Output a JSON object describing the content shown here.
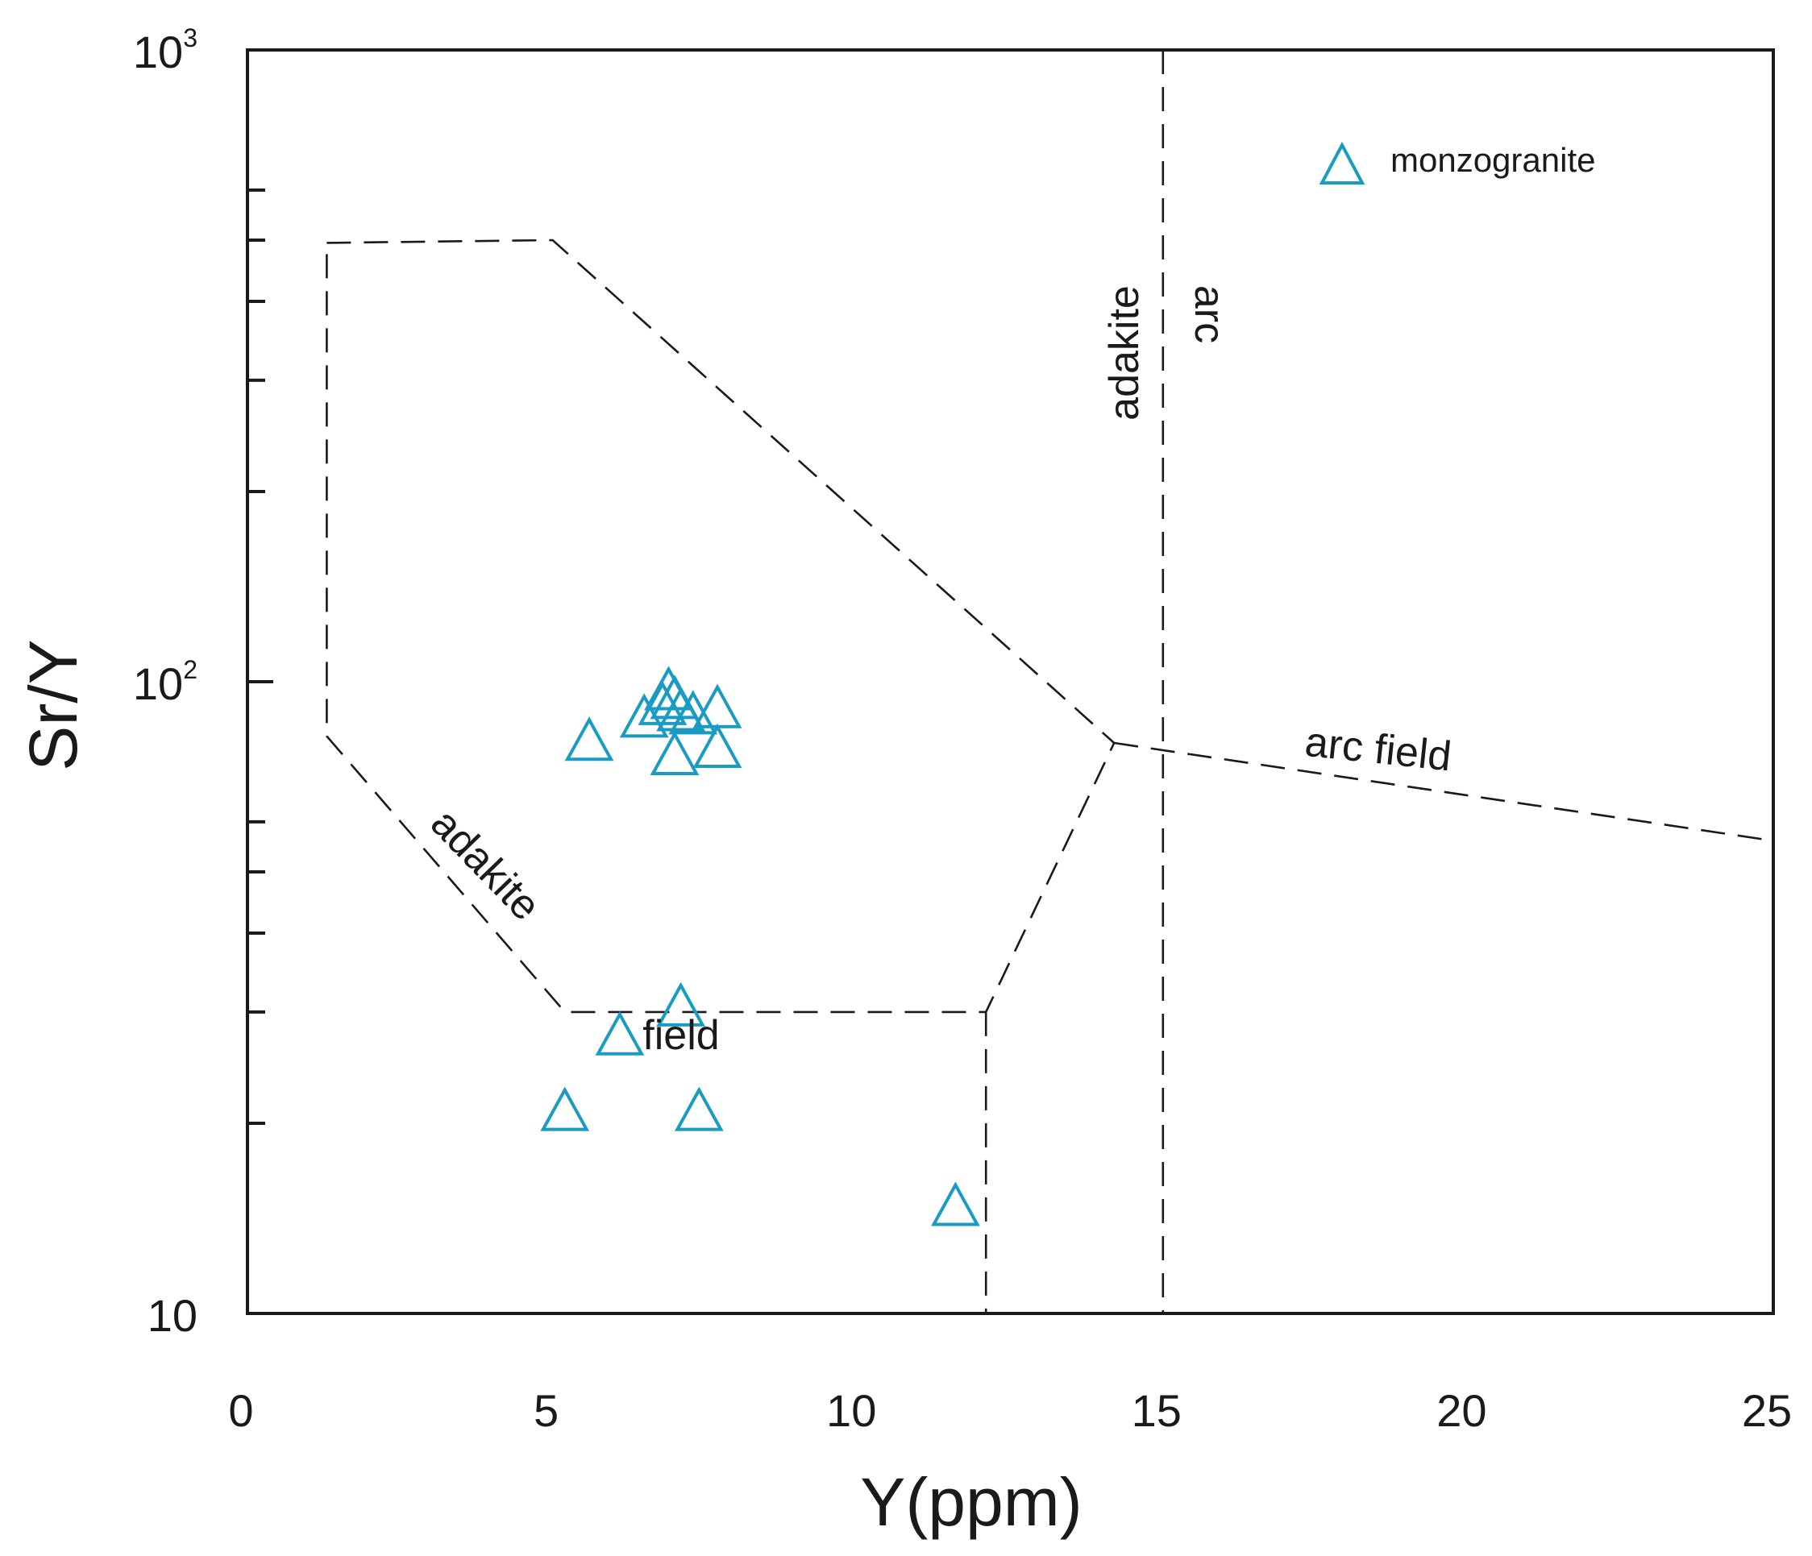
{
  "chart_data": {
    "type": "scatter",
    "xlabel": "Y(ppm)",
    "ylabel": "Sr/Y",
    "x_scale": "linear",
    "y_scale": "log",
    "xlim": [
      0,
      25
    ],
    "ylim": [
      10,
      1000
    ],
    "x_ticks": [
      {
        "value": 0,
        "label": "0"
      },
      {
        "value": 5,
        "label": "5"
      },
      {
        "value": 10,
        "label": "10"
      },
      {
        "value": 15,
        "label": "15"
      },
      {
        "value": 20,
        "label": "20"
      },
      {
        "value": 25,
        "label": "25"
      }
    ],
    "y_major_ticks": [
      {
        "value": 10,
        "base": "10",
        "exp": ""
      },
      {
        "value": 100,
        "base": "10",
        "exp": "2"
      },
      {
        "value": 1000,
        "base": "10",
        "exp": "3"
      }
    ],
    "y_minor_ticks": [
      20,
      30,
      40,
      50,
      60,
      200,
      300,
      400,
      500,
      600
    ],
    "legend_position": "top-right",
    "series": [
      {
        "name": "monzogranite",
        "marker": "open-triangle",
        "color": "#1a9bc4",
        "points": [
          {
            "x": 5.6,
            "y": 79
          },
          {
            "x": 6.5,
            "y": 86
          },
          {
            "x": 6.9,
            "y": 95
          },
          {
            "x": 6.8,
            "y": 90
          },
          {
            "x": 7.0,
            "y": 92
          },
          {
            "x": 7.1,
            "y": 88
          },
          {
            "x": 7.3,
            "y": 87
          },
          {
            "x": 7.7,
            "y": 89
          },
          {
            "x": 7.0,
            "y": 75
          },
          {
            "x": 7.7,
            "y": 77
          },
          {
            "x": 7.1,
            "y": 30
          },
          {
            "x": 6.1,
            "y": 27
          },
          {
            "x": 5.2,
            "y": 20.5
          },
          {
            "x": 7.4,
            "y": 20.5
          },
          {
            "x": 11.6,
            "y": 14.5
          }
        ]
      }
    ],
    "field_boundaries": [
      {
        "name": "adakite-field",
        "points": [
          [
            1.3,
            495
          ],
          [
            5.0,
            500
          ],
          [
            14.2,
            80
          ],
          [
            12.1,
            30
          ],
          [
            5.2,
            30
          ],
          [
            1.3,
            82
          ],
          [
            1.3,
            495
          ]
        ]
      },
      {
        "name": "arc-field-line",
        "points": [
          [
            14.2,
            80
          ],
          [
            25.0,
            56
          ]
        ]
      },
      {
        "name": "y15-divider",
        "points": [
          [
            15.0,
            1000
          ],
          [
            15.0,
            10
          ]
        ]
      },
      {
        "name": "y12-divider",
        "points": [
          [
            12.1,
            30
          ],
          [
            12.1,
            10
          ]
        ]
      }
    ],
    "annotations": [
      {
        "name": "adakite-field-label-diagonal",
        "text": "adakite"
      },
      {
        "name": "field-label-bottom",
        "text": "field"
      },
      {
        "name": "adakite-label-vertical",
        "text": "adakite"
      },
      {
        "name": "arc-label-vertical",
        "text": "arc"
      },
      {
        "name": "arc-field-label",
        "text": "arc field"
      }
    ]
  },
  "colors": {
    "marker": "#1a9bc4",
    "axis": "#1a1a1a",
    "boundary": "#1a1a1a"
  }
}
